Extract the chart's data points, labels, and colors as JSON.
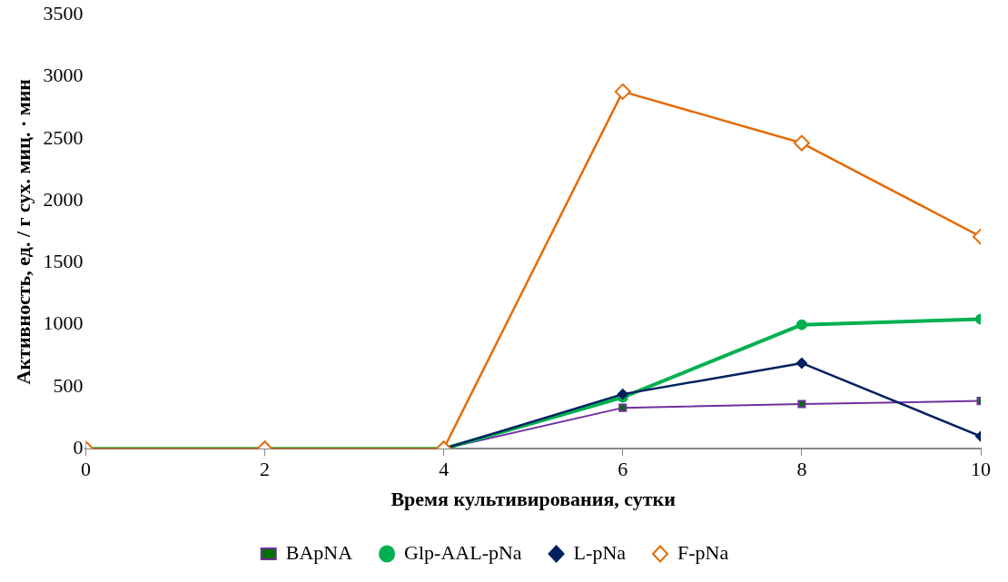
{
  "chart_data": {
    "type": "line",
    "xlabel": "Время культивирования, сутки",
    "ylabel": "Активность, ед. / г сух. миц. · мин",
    "x": [
      0,
      2,
      4,
      6,
      8,
      10
    ],
    "series": [
      {
        "name": "BApNA",
        "color": "#7030a0",
        "marker": "square",
        "values": [
          0,
          0,
          0,
          330,
          360,
          385
        ]
      },
      {
        "name": "Glp-AAL-pNa",
        "color": "#00b050",
        "marker": "circle",
        "values": [
          0,
          0,
          0,
          415,
          1000,
          1045
        ]
      },
      {
        "name": "L-pNa",
        "color": "#002060",
        "marker": "diamond",
        "values": [
          0,
          0,
          0,
          440,
          690,
          100
        ]
      },
      {
        "name": "F-pNa",
        "color": "#e36c09",
        "marker": "diamond",
        "values": [
          0,
          0,
          0,
          2880,
          2465,
          1710
        ]
      }
    ],
    "xlim": [
      0,
      10
    ],
    "xticks": [
      0,
      2,
      4,
      6,
      8,
      10
    ],
    "ylim": [
      0,
      3500
    ],
    "yticks": [
      0,
      500,
      1000,
      1500,
      2000,
      2500,
      3000,
      3500
    ],
    "grid": false,
    "legend": "bottom",
    "line_style": "solid"
  }
}
